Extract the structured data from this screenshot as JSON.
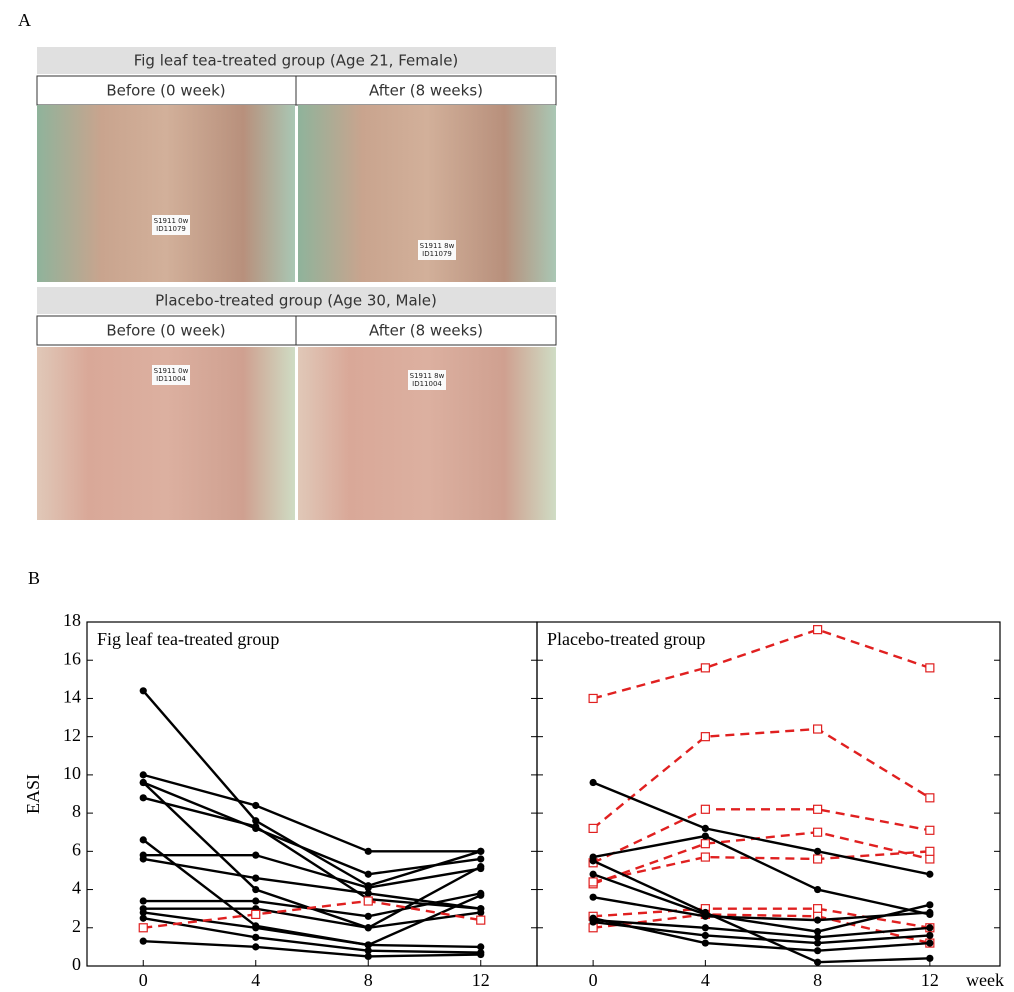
{
  "panel_labels": [
    "A",
    "B"
  ],
  "panel_a": {
    "rows": [
      {
        "title": "Fig leaf tea-treated group (Age 21, Female)",
        "before": "Before (0 week)",
        "after": "After (8 weeks)",
        "tags": [
          [
            "S1911 0w",
            "ID11079"
          ],
          [
            "S1911 8w",
            "ID11079"
          ]
        ]
      },
      {
        "title": "Placebo-treated group (Age 30, Male)",
        "before": "Before (0 week)",
        "after": "After (8 weeks)",
        "tags": [
          [
            "S1911 0w",
            "ID11004"
          ],
          [
            "S1911 8w",
            "ID11004"
          ]
        ]
      }
    ]
  },
  "chart_data": [
    {
      "type": "line",
      "title": "Fig leaf tea-treated group",
      "ylabel": "EASI",
      "x": [
        0,
        4,
        8,
        12
      ],
      "xlim": [
        -2,
        14
      ],
      "ylim": [
        0,
        18
      ],
      "xticks": [
        0,
        4,
        8,
        12
      ],
      "yticks": [
        0,
        2,
        4,
        6,
        8,
        10,
        12,
        14,
        16,
        18
      ],
      "series": [
        {
          "color": "#000000",
          "linestyle": "solid",
          "marker": "circle",
          "values": [
            14.4,
            7.6,
            4.2,
            6.0
          ]
        },
        {
          "color": "#000000",
          "linestyle": "solid",
          "marker": "circle",
          "values": [
            10.0,
            8.4,
            6.0,
            6.0
          ]
        },
        {
          "color": "#000000",
          "linestyle": "solid",
          "marker": "circle",
          "values": [
            9.6,
            7.2,
            4.8,
            5.6
          ]
        },
        {
          "color": "#000000",
          "linestyle": "solid",
          "marker": "circle",
          "values": [
            8.8,
            7.3,
            3.5,
            3.0
          ]
        },
        {
          "color": "#000000",
          "linestyle": "solid",
          "marker": "circle",
          "values": [
            9.6,
            4.0,
            2.0,
            5.2
          ]
        },
        {
          "color": "#000000",
          "linestyle": "solid",
          "marker": "circle",
          "values": [
            6.6,
            2.1,
            1.1,
            3.7
          ]
        },
        {
          "color": "#000000",
          "linestyle": "solid",
          "marker": "circle",
          "values": [
            5.8,
            5.8,
            4.1,
            5.1
          ]
        },
        {
          "color": "#000000",
          "linestyle": "solid",
          "marker": "circle",
          "values": [
            5.6,
            4.6,
            3.8,
            3.0
          ]
        },
        {
          "color": "#000000",
          "linestyle": "solid",
          "marker": "circle",
          "values": [
            3.4,
            3.4,
            2.6,
            3.8
          ]
        },
        {
          "color": "#000000",
          "linestyle": "solid",
          "marker": "circle",
          "values": [
            3.0,
            3.0,
            2.0,
            2.8
          ]
        },
        {
          "color": "#000000",
          "linestyle": "solid",
          "marker": "circle",
          "values": [
            2.8,
            2.0,
            1.1,
            1.0
          ]
        },
        {
          "color": "#000000",
          "linestyle": "solid",
          "marker": "circle",
          "values": [
            2.5,
            1.5,
            0.8,
            0.7
          ]
        },
        {
          "color": "#000000",
          "linestyle": "solid",
          "marker": "circle",
          "values": [
            1.3,
            1.0,
            0.5,
            0.6
          ]
        },
        {
          "color": "#e02020",
          "linestyle": "dashed",
          "marker": "square",
          "values": [
            2.0,
            2.7,
            3.4,
            2.4
          ]
        }
      ]
    },
    {
      "type": "line",
      "title": "Placebo-treated group",
      "xlabel": "week",
      "x": [
        0,
        4,
        8,
        12
      ],
      "xlim": [
        -2,
        14.5
      ],
      "ylim": [
        0,
        18
      ],
      "xticks": [
        0,
        4,
        8,
        12
      ],
      "series": [
        {
          "color": "#e02020",
          "linestyle": "dashed",
          "marker": "square",
          "values": [
            14.0,
            15.6,
            17.6,
            15.6
          ]
        },
        {
          "color": "#e02020",
          "linestyle": "dashed",
          "marker": "square",
          "values": [
            7.2,
            12.0,
            12.4,
            8.8
          ]
        },
        {
          "color": "#e02020",
          "linestyle": "dashed",
          "marker": "square",
          "values": [
            5.4,
            8.2,
            8.2,
            7.1
          ]
        },
        {
          "color": "#e02020",
          "linestyle": "dashed",
          "marker": "square",
          "values": [
            4.3,
            6.4,
            7.0,
            5.6
          ]
        },
        {
          "color": "#e02020",
          "linestyle": "dashed",
          "marker": "square",
          "values": [
            4.4,
            5.7,
            5.6,
            6.0
          ]
        },
        {
          "color": "#e02020",
          "linestyle": "dashed",
          "marker": "square",
          "values": [
            2.6,
            3.0,
            3.0,
            2.0
          ]
        },
        {
          "color": "#e02020",
          "linestyle": "dashed",
          "marker": "square",
          "values": [
            2.0,
            2.7,
            2.6,
            1.2
          ]
        },
        {
          "color": "#000000",
          "linestyle": "solid",
          "marker": "circle",
          "values": [
            9.6,
            7.2,
            6.0,
            4.8
          ]
        },
        {
          "color": "#000000",
          "linestyle": "solid",
          "marker": "circle",
          "values": [
            5.7,
            6.8,
            4.0,
            2.7
          ]
        },
        {
          "color": "#000000",
          "linestyle": "solid",
          "marker": "circle",
          "values": [
            5.5,
            2.8,
            0.2,
            0.4
          ]
        },
        {
          "color": "#000000",
          "linestyle": "solid",
          "marker": "circle",
          "values": [
            4.8,
            2.7,
            1.8,
            3.2
          ]
        },
        {
          "color": "#000000",
          "linestyle": "solid",
          "marker": "circle",
          "values": [
            3.6,
            2.6,
            2.4,
            2.8
          ]
        },
        {
          "color": "#000000",
          "linestyle": "solid",
          "marker": "circle",
          "values": [
            2.4,
            2.0,
            1.5,
            2.0
          ]
        },
        {
          "color": "#000000",
          "linestyle": "solid",
          "marker": "circle",
          "values": [
            2.3,
            1.6,
            1.2,
            1.6
          ]
        },
        {
          "color": "#000000",
          "linestyle": "solid",
          "marker": "circle",
          "values": [
            2.5,
            1.2,
            0.8,
            1.2
          ]
        }
      ]
    }
  ]
}
